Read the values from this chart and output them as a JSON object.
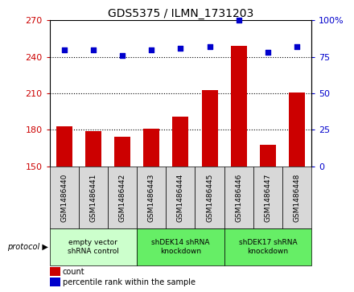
{
  "title": "GDS5375 / ILMN_1731203",
  "samples": [
    "GSM1486440",
    "GSM1486441",
    "GSM1486442",
    "GSM1486443",
    "GSM1486444",
    "GSM1486445",
    "GSM1486446",
    "GSM1486447",
    "GSM1486448"
  ],
  "counts": [
    183,
    179,
    174,
    181,
    191,
    213,
    249,
    168,
    211
  ],
  "percentiles": [
    80,
    80,
    76,
    80,
    81,
    82,
    100,
    78,
    82
  ],
  "ylim_left": [
    150,
    270
  ],
  "yticks_left": [
    150,
    180,
    210,
    240,
    270
  ],
  "ylim_right": [
    0,
    100
  ],
  "yticks_right": [
    0,
    25,
    50,
    75,
    100
  ],
  "protocols": [
    {
      "label": "empty vector\nshRNA control",
      "span": [
        0,
        3
      ],
      "color": "#ccffcc"
    },
    {
      "label": "shDEK14 shRNA\nknockdown",
      "span": [
        3,
        6
      ],
      "color": "#66ee66"
    },
    {
      "label": "shDEK17 shRNA\nknockdown",
      "span": [
        6,
        9
      ],
      "color": "#66ee66"
    }
  ],
  "bar_color": "#cc0000",
  "dot_color": "#0000cc",
  "bar_width": 0.55,
  "bg_color": "#d8d8d8",
  "plot_bg": "white",
  "left_tick_color": "#cc0000",
  "right_tick_color": "#0000cc",
  "title_fontsize": 10,
  "tick_fontsize": 8,
  "label_fontsize": 6.5,
  "legend_fontsize": 7
}
